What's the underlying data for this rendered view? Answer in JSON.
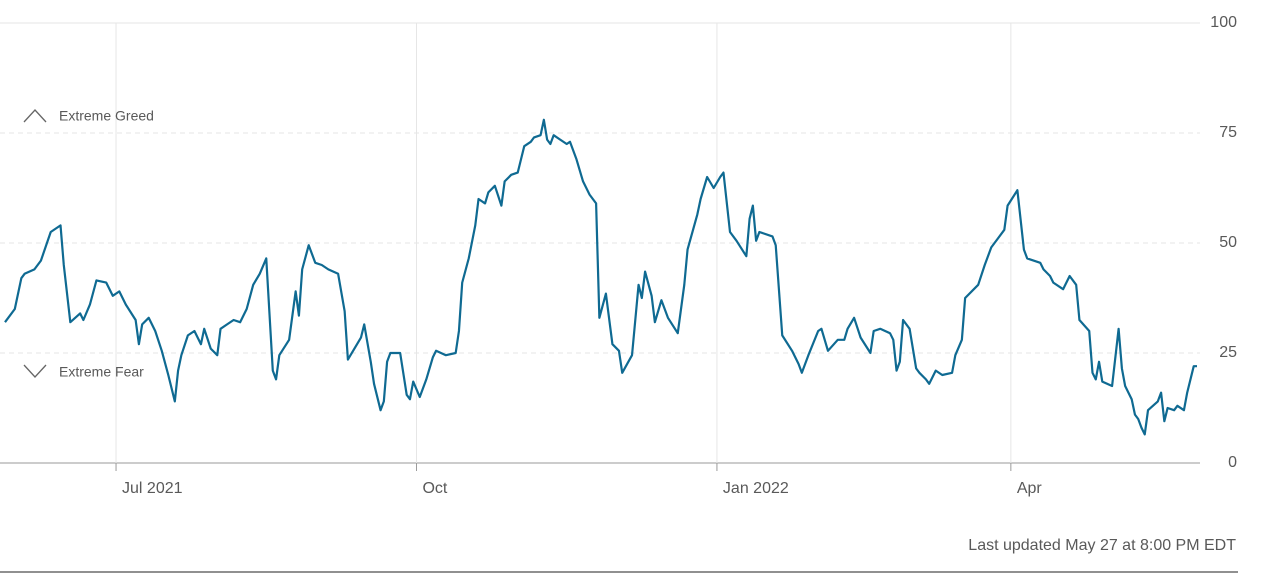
{
  "chart_data": {
    "type": "line",
    "x": [
      0,
      3,
      5,
      6,
      9,
      11,
      14,
      17,
      18,
      20,
      23,
      24,
      26,
      28,
      31,
      33,
      35,
      37,
      40,
      41,
      42,
      44,
      46,
      48,
      50,
      52,
      53,
      54,
      56,
      58,
      60,
      61,
      63,
      65,
      66,
      68,
      70,
      72,
      74,
      76,
      78,
      80,
      82,
      83,
      84,
      87,
      89,
      90,
      91,
      93,
      95,
      97,
      99,
      102,
      104,
      105,
      107,
      109,
      110,
      112,
      113,
      115,
      116,
      117,
      118,
      121,
      123,
      124,
      125,
      127,
      129,
      131,
      132,
      135,
      138,
      139,
      140,
      142,
      144,
      145,
      147,
      148,
      150,
      152,
      153,
      155,
      157,
      158,
      159,
      161,
      162,
      164,
      165,
      166,
      167,
      168,
      170,
      172,
      173,
      175,
      177,
      179,
      181,
      182,
      184,
      186,
      188,
      189,
      192,
      194,
      195,
      196,
      198,
      199,
      201,
      203,
      206,
      208,
      209,
      212,
      213,
      215,
      217,
      219,
      220,
      222,
      224,
      227,
      228,
      229,
      230,
      231,
      235,
      236,
      238,
      241,
      243,
      244,
      246,
      249,
      250,
      251,
      252,
      255,
      257,
      258,
      260,
      262,
      265,
      266,
      268,
      271,
      272,
      273,
      274,
      275,
      277,
      279,
      280,
      282,
      283,
      285,
      287,
      290,
      291,
      293,
      294,
      298,
      300,
      302,
      304,
      306,
      307,
      310,
      312,
      313,
      317,
      318,
      320,
      321,
      324,
      326,
      328,
      329,
      332,
      333,
      334,
      335,
      336,
      339,
      341,
      342,
      343,
      345,
      346,
      347,
      348,
      349,
      350,
      353,
      354,
      355,
      356,
      358,
      359,
      361,
      362,
      364,
      365
    ],
    "values": [
      32,
      35,
      42,
      43,
      44,
      46,
      52.5,
      54,
      45,
      32,
      34,
      32.5,
      36,
      41.5,
      41,
      38,
      39,
      36,
      32.5,
      27,
      31.5,
      33,
      30,
      25.5,
      20,
      14,
      21,
      24.5,
      29,
      30,
      27,
      30.5,
      26,
      24.5,
      30.5,
      31.5,
      32.5,
      32,
      35,
      40.5,
      43,
      46.5,
      21,
      19,
      24.5,
      28,
      39,
      33.5,
      44,
      49.5,
      45.5,
      45,
      44,
      43,
      34.5,
      23.5,
      26,
      28.5,
      31.5,
      23,
      18,
      12,
      14,
      23,
      25,
      25,
      15.5,
      14.5,
      18.5,
      15,
      19,
      24,
      25.5,
      24.5,
      25,
      30,
      41,
      46.5,
      54,
      60,
      59,
      61.5,
      63,
      58.5,
      64,
      65.5,
      66,
      69,
      72,
      73,
      74,
      74.5,
      78,
      73.5,
      72.5,
      74.5,
      73.5,
      72.5,
      73,
      69,
      64,
      61,
      59,
      33,
      38.5,
      27,
      25.5,
      20.5,
      24.5,
      40.5,
      37.5,
      43.5,
      38,
      32,
      37,
      33,
      29.5,
      40.5,
      48.5,
      56.5,
      60,
      65,
      62.5,
      65,
      66,
      52.5,
      50.5,
      47,
      55.5,
      58.5,
      50.5,
      52.5,
      51.5,
      49.5,
      29,
      25.5,
      22.5,
      20.5,
      24.5,
      30,
      30.5,
      28,
      25.5,
      28,
      28,
      30.5,
      33,
      28.5,
      25,
      30,
      30.5,
      29.5,
      28,
      21,
      23,
      32.5,
      30.5,
      21.5,
      20.5,
      19,
      18,
      21,
      20,
      20.5,
      24.5,
      28,
      37.5,
      40.5,
      45,
      49,
      51,
      53,
      58.5,
      62,
      48.5,
      46.5,
      45.5,
      44,
      42.5,
      41,
      39.5,
      42.5,
      40.5,
      32.5,
      30,
      20.5,
      19,
      23,
      18.5,
      17.5,
      30.5,
      21.5,
      17.5,
      14.5,
      11,
      10,
      8,
      6.5,
      12,
      14,
      16,
      9.5,
      12.5,
      12,
      13,
      12,
      16,
      22,
      22
    ],
    "color": "#0f6a92",
    "xlim": [
      0,
      365
    ],
    "xticks": [
      {
        "value": 34,
        "label": "Jul 2021"
      },
      {
        "value": 126,
        "label": "Oct"
      },
      {
        "value": 218,
        "label": "Jan 2022"
      },
      {
        "value": 308,
        "label": "Apr"
      }
    ],
    "ylim": [
      0,
      100
    ],
    "yticks": [
      0,
      25,
      50,
      75,
      100
    ],
    "grid": true,
    "annotations": [
      "Extreme Greed",
      "Extreme Fear"
    ],
    "footnote": "Last updated May 27 at 8:00 PM EDT"
  }
}
